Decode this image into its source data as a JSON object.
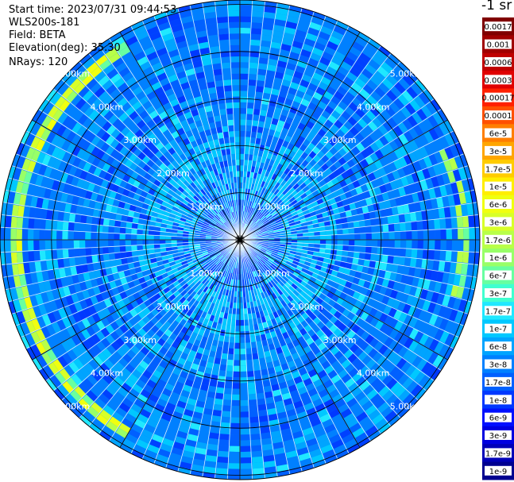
{
  "header": {
    "start_time": "Start time: 2023/07/31 09:44:53",
    "instrument": "WLS200s-181",
    "field": "Field: BETA",
    "elevation": "Elevation(deg): 35.30",
    "nrays": "NRays: 120"
  },
  "colorbar": {
    "title": "-1 sr",
    "labels": [
      "0.0017",
      "0.001",
      "0.0006",
      "0.0003",
      "0.00017",
      "0.0001",
      "6e-5",
      "3e-5",
      "1.7e-5",
      "1e-5",
      "6e-6",
      "3e-6",
      "1.7e-6",
      "1e-6",
      "6e-7",
      "3e-7",
      "1.7e-7",
      "1e-7",
      "6e-8",
      "3e-8",
      "1.7e-8",
      "1e-8",
      "6e-9",
      "3e-9",
      "1.7e-9",
      "1e-9"
    ],
    "colors": [
      "#800000",
      "#a00000",
      "#c00000",
      "#e00000",
      "#ff2000",
      "#ff5000",
      "#ff7e00",
      "#ffa600",
      "#ffcc00",
      "#ffee00",
      "#f0ff10",
      "#d8ff28",
      "#b8ff48",
      "#98ff68",
      "#68ffa0",
      "#40ffd0",
      "#20e8ff",
      "#00c8ff",
      "#00a4ff",
      "#0080ff",
      "#0060ff",
      "#0038ff",
      "#0010ff",
      "#0000e0",
      "#0000b8",
      "#000090"
    ]
  },
  "chart_data": {
    "type": "heatmap",
    "projection": "polar-ppi",
    "field": "BETA",
    "elevation_deg": 35.3,
    "n_rays": 120,
    "range_ring_labels_km": [
      "1.00km",
      "2.00km",
      "3.00km",
      "4.00km",
      "5.00km"
    ],
    "range_rings_km": [
      1,
      2,
      3,
      4,
      5
    ],
    "max_range_km": 5.6,
    "azimuth_lines_deg": [
      0,
      30,
      60,
      90,
      120,
      150,
      180,
      210,
      240,
      270,
      300,
      330
    ],
    "background_level": "1e-8 to 1e-7",
    "enhanced_arc": {
      "range_km": 4.75,
      "azimuth_deg": [
        210,
        330
      ],
      "level": "3e-6 to 1.7e-5"
    },
    "enhanced_arc_east": {
      "range_km": 4.75,
      "azimuth_deg": [
        65,
        105
      ],
      "level": "1e-6 to 3e-6"
    }
  }
}
